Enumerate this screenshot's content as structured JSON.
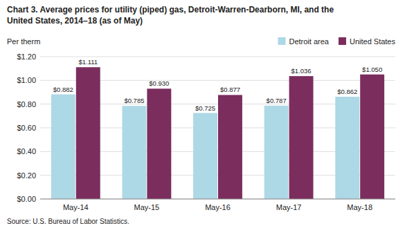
{
  "chart_data": {
    "type": "bar",
    "title": "Chart 3. Average prices for utility (piped) gas, Detroit-Warren-Dearborn, MI, and the",
    "subtitle": "United States, 2014–18 (as of May)",
    "ylabel": "Per therm",
    "source": "Source: U.S. Bureau of Labor Statistics.",
    "categories": [
      "May-14",
      "May-15",
      "May-16",
      "May-17",
      "May-18"
    ],
    "series": [
      {
        "name": "Detroit area",
        "color": "#add8e6",
        "values": [
          0.882,
          0.785,
          0.725,
          0.787,
          0.862
        ],
        "value_labels": [
          "$0.882",
          "$0.785",
          "$0.725",
          "$0.787",
          "$0.862"
        ]
      },
      {
        "name": "United States",
        "color": "#7b2d5e",
        "values": [
          1.111,
          0.93,
          0.877,
          1.036,
          1.05
        ],
        "value_labels": [
          "$1.111",
          "$0.930",
          "$0.877",
          "$1.036",
          "$1.050"
        ]
      }
    ],
    "ylim": [
      0,
      1.2
    ],
    "yticks": [
      {
        "value": 0.0,
        "label": "$0.00"
      },
      {
        "value": 0.2,
        "label": "$0.20"
      },
      {
        "value": 0.4,
        "label": "$0.40"
      },
      {
        "value": 0.6,
        "label": "$0.60"
      },
      {
        "value": 0.8,
        "label": "$0.80"
      },
      {
        "value": 1.0,
        "label": "$1.00"
      },
      {
        "value": 1.2,
        "label": "$1.20"
      }
    ],
    "grid": true,
    "legend": "upper right",
    "data_labels": true
  }
}
